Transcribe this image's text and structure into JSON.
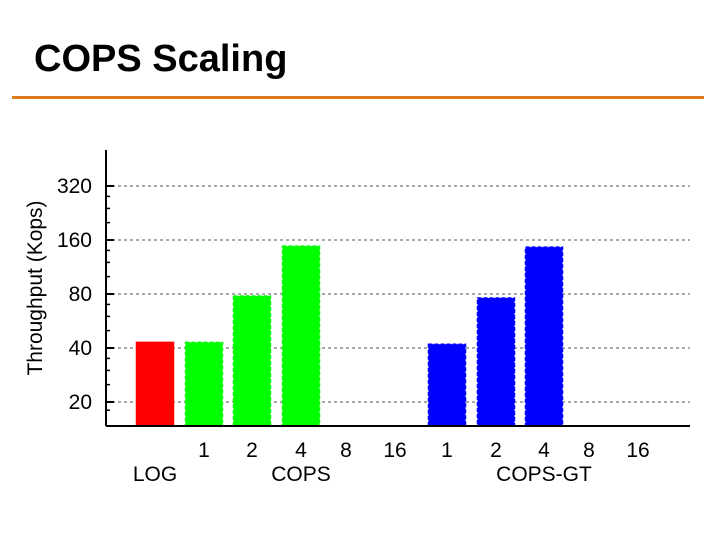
{
  "slide": {
    "title": "COPS Scaling",
    "rule_color": "#E07A1F"
  },
  "chart_data": {
    "type": "bar",
    "title": "",
    "xlabel": "",
    "ylabel": "Throughput (Kops)",
    "y_scale": "log2",
    "ylim": [
      16,
      400
    ],
    "yticks": [
      20,
      40,
      80,
      160,
      320
    ],
    "grid": "horizontal-dashed",
    "groups": [
      {
        "name": "LOG",
        "color": "#FF0000",
        "bars": [
          {
            "label": "",
            "value": 43
          }
        ]
      },
      {
        "name": "COPS",
        "color": "#00FF00",
        "bars": [
          {
            "label": "1",
            "value": 43
          },
          {
            "label": "2",
            "value": 78
          },
          {
            "label": "4",
            "value": 148
          },
          {
            "label": "8",
            "value": null
          },
          {
            "label": "16",
            "value": null
          }
        ]
      },
      {
        "name": "COPS-GT",
        "color": "#0000FF",
        "bars": [
          {
            "label": "1",
            "value": 42
          },
          {
            "label": "2",
            "value": 76
          },
          {
            "label": "4",
            "value": 146
          },
          {
            "label": "8",
            "value": null
          },
          {
            "label": "16",
            "value": null
          }
        ]
      }
    ]
  }
}
